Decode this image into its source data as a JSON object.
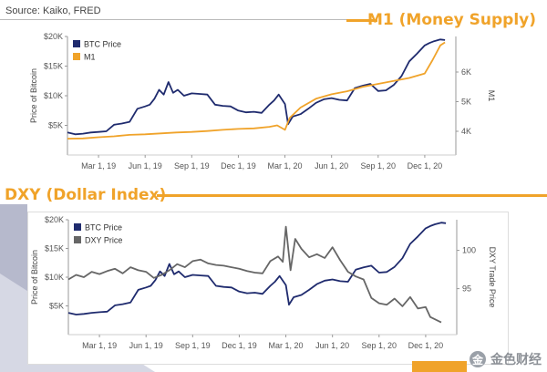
{
  "source": "Source: Kaiko, FRED",
  "sections": {
    "m1_title": "M1 (Money Supply)",
    "dxy_title": "DXY (Dollar Index)"
  },
  "watermark": {
    "logo": "金",
    "text": "金色财经"
  },
  "colors": {
    "btc": "#1f2b6e",
    "m1": "#f0a32a",
    "dxy": "#666666",
    "accent": "#f0a32a"
  },
  "chart_data": [
    {
      "type": "line",
      "title": "M1 (Money Supply)",
      "ylabel": "Price of Bitcoin",
      "y2label": "M1",
      "ylim": [
        0,
        20000
      ],
      "yticks": [
        {
          "v": 5000,
          "label": "$5K"
        },
        {
          "v": 10000,
          "label": "$10K"
        },
        {
          "v": 15000,
          "label": "$15K"
        },
        {
          "v": 20000,
          "label": "$20K"
        }
      ],
      "y2lim": [
        3.2,
        7.2
      ],
      "y2ticks": [
        {
          "v": 4,
          "label": "4K"
        },
        {
          "v": 5,
          "label": "5K"
        },
        {
          "v": 6,
          "label": "6K"
        }
      ],
      "xlim": [
        0,
        25
      ],
      "xticks": [
        {
          "v": 2,
          "label": "Mar 1, 19"
        },
        {
          "v": 5,
          "label": "Jun 1, 19"
        },
        {
          "v": 8,
          "label": "Sep 1, 19"
        },
        {
          "v": 11,
          "label": "Dec 1, 19"
        },
        {
          "v": 14,
          "label": "Mar 1, 20"
        },
        {
          "v": 17,
          "label": "Jun 1, 20"
        },
        {
          "v": 20,
          "label": "Sep 1, 20"
        },
        {
          "v": 23,
          "label": "Dec 1, 20"
        }
      ],
      "legend": [
        "BTC Price",
        "M1"
      ],
      "legend_position": "top-left",
      "series": [
        {
          "name": "BTC Price",
          "axis": "left",
          "x": [
            0,
            0.5,
            1,
            1.5,
            2,
            2.5,
            3,
            3.5,
            4,
            4.5,
            5,
            5.3,
            5.6,
            5.9,
            6.2,
            6.5,
            6.8,
            7.1,
            7.5,
            8,
            8.5,
            9,
            9.5,
            10,
            10.5,
            11,
            11.5,
            12,
            12.5,
            13,
            13.3,
            13.6,
            14,
            14.2,
            14.5,
            15,
            15.5,
            16,
            16.5,
            17,
            17.5,
            18,
            18.5,
            19,
            19.5,
            20,
            20.5,
            21,
            21.5,
            22,
            22.5,
            23,
            23.3,
            23.6,
            24,
            24.3
          ],
          "values": [
            3800,
            3500,
            3600,
            3800,
            3900,
            4000,
            5100,
            5300,
            5600,
            7800,
            8200,
            8500,
            9500,
            11000,
            10200,
            12300,
            10500,
            11000,
            10000,
            10400,
            10300,
            10200,
            8500,
            8300,
            8200,
            7500,
            7200,
            7300,
            7100,
            8500,
            9200,
            10200,
            8600,
            5200,
            6500,
            6900,
            7800,
            8800,
            9400,
            9600,
            9300,
            9200,
            11300,
            11700,
            12000,
            10800,
            10900,
            11800,
            13300,
            15800,
            17100,
            18500,
            18900,
            19200,
            19500,
            19400
          ]
        },
        {
          "name": "M1",
          "axis": "right",
          "x": [
            0,
            1,
            2,
            3,
            4,
            5,
            6,
            7,
            8,
            9,
            10,
            11,
            12,
            13,
            13.5,
            14,
            14.3,
            14.7,
            15,
            16,
            17,
            18,
            19,
            20,
            21,
            22,
            23,
            23.5,
            24,
            24.3
          ],
          "values": [
            3.75,
            3.76,
            3.8,
            3.83,
            3.88,
            3.9,
            3.93,
            3.96,
            3.98,
            4.01,
            4.05,
            4.08,
            4.1,
            4.15,
            4.2,
            4.05,
            4.45,
            4.65,
            4.8,
            5.1,
            5.25,
            5.35,
            5.5,
            5.6,
            5.7,
            5.8,
            5.95,
            6.4,
            6.9,
            7.0
          ]
        }
      ]
    },
    {
      "type": "line",
      "title": "DXY (Dollar Index)",
      "ylabel": "Price of Bitcoin",
      "y2label": "DXY Trade Price",
      "ylim": [
        0,
        20000
      ],
      "yticks": [
        {
          "v": 5000,
          "label": "$5K"
        },
        {
          "v": 10000,
          "label": "$10K"
        },
        {
          "v": 15000,
          "label": "$15K"
        },
        {
          "v": 20000,
          "label": "$20K"
        }
      ],
      "y2lim": [
        89,
        104
      ],
      "y2ticks": [
        {
          "v": 95,
          "label": "95"
        },
        {
          "v": 100,
          "label": "100"
        }
      ],
      "xlim": [
        0,
        25
      ],
      "xticks": [
        {
          "v": 2,
          "label": "Mar 1, 19"
        },
        {
          "v": 5,
          "label": "Jun 1, 19"
        },
        {
          "v": 8,
          "label": "Sep 1, 19"
        },
        {
          "v": 11,
          "label": "Dec 1, 19"
        },
        {
          "v": 14,
          "label": "Mar 1, 20"
        },
        {
          "v": 17,
          "label": "Jun 1, 20"
        },
        {
          "v": 20,
          "label": "Sep 1, 20"
        },
        {
          "v": 23,
          "label": "Dec 1, 20"
        }
      ],
      "legend": [
        "BTC Price",
        "DXY Price"
      ],
      "legend_position": "top-left",
      "series": [
        {
          "name": "BTC Price",
          "axis": "left",
          "x": [
            0,
            0.5,
            1,
            1.5,
            2,
            2.5,
            3,
            3.5,
            4,
            4.5,
            5,
            5.3,
            5.6,
            5.9,
            6.2,
            6.5,
            6.8,
            7.1,
            7.5,
            8,
            8.5,
            9,
            9.5,
            10,
            10.5,
            11,
            11.5,
            12,
            12.5,
            13,
            13.3,
            13.6,
            14,
            14.2,
            14.5,
            15,
            15.5,
            16,
            16.5,
            17,
            17.5,
            18,
            18.5,
            19,
            19.5,
            20,
            20.5,
            21,
            21.5,
            22,
            22.5,
            23,
            23.3,
            23.6,
            24,
            24.3
          ],
          "values": [
            3800,
            3500,
            3600,
            3800,
            3900,
            4000,
            5100,
            5300,
            5600,
            7800,
            8200,
            8500,
            9500,
            11000,
            10200,
            12300,
            10500,
            11000,
            10000,
            10400,
            10300,
            10200,
            8500,
            8300,
            8200,
            7500,
            7200,
            7300,
            7100,
            8500,
            9200,
            10200,
            8600,
            5200,
            6500,
            6900,
            7800,
            8800,
            9400,
            9600,
            9300,
            9200,
            11300,
            11700,
            12000,
            10800,
            10900,
            11800,
            13300,
            15800,
            17100,
            18500,
            18900,
            19200,
            19500,
            19400
          ]
        },
        {
          "name": "DXY Price",
          "axis": "right",
          "x": [
            0,
            0.5,
            1,
            1.5,
            2,
            2.5,
            3,
            3.5,
            4,
            4.5,
            5,
            5.5,
            6,
            6.5,
            7,
            7.5,
            8,
            8.5,
            9,
            9.5,
            10,
            10.5,
            11,
            11.5,
            12,
            12.5,
            13,
            13.5,
            13.8,
            14,
            14.3,
            14.6,
            15,
            15.5,
            16,
            16.5,
            17,
            17.5,
            18,
            18.5,
            19,
            19.5,
            20,
            20.5,
            21,
            21.5,
            22,
            22.5,
            23,
            23.3,
            23.6,
            24
          ],
          "values": [
            96.2,
            96.8,
            96.5,
            97.2,
            96.9,
            97.3,
            97.6,
            97.0,
            97.8,
            97.4,
            97.2,
            96.4,
            96.8,
            97.4,
            98.2,
            97.8,
            98.6,
            98.8,
            98.3,
            98.1,
            98.0,
            97.8,
            97.6,
            97.3,
            97.1,
            97.0,
            98.6,
            99.2,
            98.5,
            103.1,
            97.4,
            101.5,
            100.2,
            99.1,
            99.5,
            99.0,
            100.4,
            98.7,
            97.2,
            96.6,
            96.2,
            93.8,
            93.1,
            92.9,
            93.7,
            92.7,
            93.9,
            92.4,
            92.6,
            91.3,
            91.0,
            90.6
          ]
        }
      ]
    }
  ]
}
